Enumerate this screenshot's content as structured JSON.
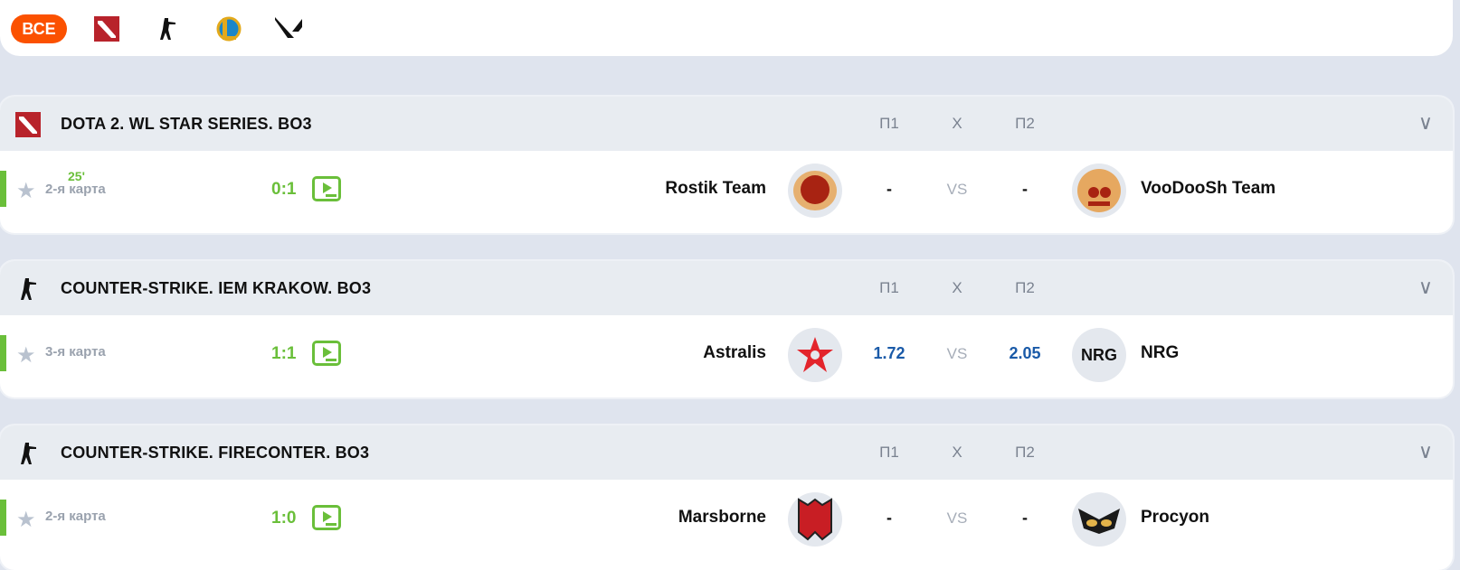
{
  "filter": {
    "all_label": "ВСЕ",
    "games": [
      "dota2-icon",
      "counter-strike-icon",
      "league-of-legends-icon",
      "valorant-icon"
    ]
  },
  "columns": {
    "p1": "П1",
    "x": "X",
    "p2": "П2"
  },
  "vs": "VS",
  "colors": {
    "accent": "#fb5100",
    "live": "#6abf3a",
    "odds": "#1a5aa8"
  },
  "events": [
    {
      "game": "dota2",
      "title": "DOTA 2. WL STAR SERIES. BO3",
      "time": "25'",
      "map": "2-я карта",
      "score": "0:1",
      "team1": "Rostik Team",
      "team2": "VooDooSh Team",
      "odd1": "-",
      "odd2": "-"
    },
    {
      "game": "cs",
      "title": "COUNTER-STRIKE. IEM KRAKOW. BO3",
      "time": "",
      "map": "3-я карта",
      "score": "1:1",
      "team1": "Astralis",
      "team2": "NRG",
      "team2_logo_text": "NRG",
      "odd1": "1.72",
      "odd2": "2.05"
    },
    {
      "game": "cs",
      "title": "COUNTER-STRIKE. FIRECONTER. BO3",
      "time": "",
      "map": "2-я карта",
      "score": "1:0",
      "team1": "Marsborne",
      "team2": "Procyon",
      "odd1": "-",
      "odd2": "-"
    }
  ]
}
